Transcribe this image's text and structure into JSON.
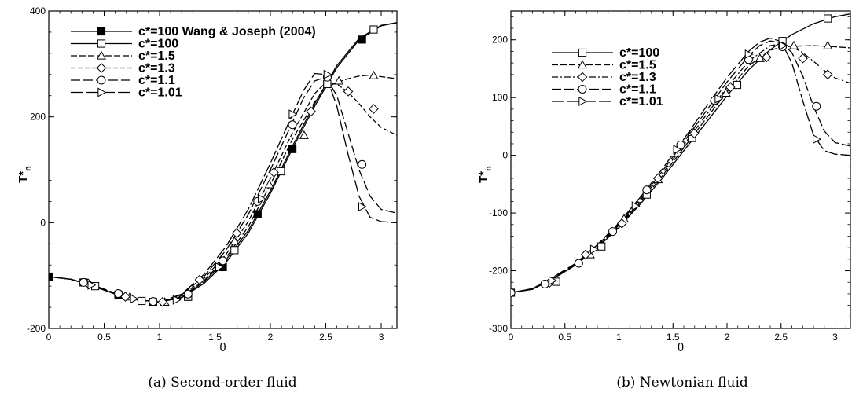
{
  "colors": {
    "ink": "#000000",
    "background": "#ffffff",
    "marker_fill": "#ffffff"
  },
  "chart_data": [
    {
      "type": "line",
      "caption": "(a) Second-order fluid",
      "xlabel": "θ",
      "ylabel": "T*",
      "ylabel_sub": "n",
      "xlim": [
        0,
        3.1416
      ],
      "ylim": [
        -200,
        400
      ],
      "xticks": [
        0,
        0.5,
        1,
        1.5,
        2,
        2.5,
        3
      ],
      "xtick_labels": [
        "0",
        "0.5",
        "1",
        "1.5",
        "2",
        "2.5",
        "3"
      ],
      "yticks": [
        -200,
        0,
        200,
        400
      ],
      "ytick_labels": [
        "-200",
        "0",
        "200",
        "400"
      ],
      "grid": false,
      "legend_position": "top-right",
      "series": [
        {
          "name": "c*=100 Wang & Joseph (2004)",
          "dash": "none",
          "marker": "filled-square",
          "x": [
            0,
            0.2,
            0.4,
            0.6,
            0.8,
            1.0,
            1.2,
            1.4,
            1.6,
            1.8,
            2.0,
            2.2,
            2.4,
            2.6,
            2.8,
            3.0,
            3.1416
          ],
          "y": [
            -102,
            -107,
            -120,
            -135,
            -146,
            -150,
            -142,
            -115,
            -75,
            -20,
            55,
            140,
            220,
            293,
            345,
            372,
            378
          ],
          "marker_x": [
            0,
            0.314,
            0.628,
            0.942,
            1.257,
            1.571,
            1.885,
            2.199,
            2.513,
            2.827
          ],
          "marker_y": [
            -102,
            -113,
            -136,
            -150,
            -140,
            -84,
            16,
            139,
            262,
            346
          ]
        },
        {
          "name": "c*=100",
          "dash": "none",
          "marker": "open-square",
          "x": [
            0,
            0.2,
            0.4,
            0.6,
            0.8,
            1.0,
            1.2,
            1.4,
            1.6,
            1.8,
            2.0,
            2.2,
            2.4,
            2.6,
            2.8,
            3.0,
            3.1416
          ],
          "y": [
            -102,
            -107,
            -120,
            -135,
            -146,
            -150,
            -141,
            -112,
            -70,
            -15,
            60,
            145,
            225,
            297,
            348,
            373,
            378
          ],
          "marker_x": [
            0.419,
            0.838,
            1.257,
            1.676,
            2.094,
            2.513,
            2.932
          ],
          "marker_y": [
            -120,
            -148,
            -140,
            -52,
            97,
            262,
            365
          ]
        },
        {
          "name": "c*=1.5",
          "dash": "8,3",
          "marker": "open-triangle",
          "x": [
            0,
            0.2,
            0.4,
            0.6,
            0.8,
            1.0,
            1.2,
            1.4,
            1.6,
            1.8,
            2.0,
            2.2,
            2.4,
            2.5,
            2.6,
            2.7,
            2.8,
            2.9,
            3.0,
            3.1416
          ],
          "y": [
            -102,
            -107,
            -119,
            -135,
            -146,
            -150,
            -140,
            -110,
            -66,
            -8,
            72,
            158,
            228,
            255,
            265,
            272,
            277,
            279,
            276,
            272
          ],
          "marker_x": [
            0.733,
            1.047,
            1.361,
            1.676,
            1.99,
            2.304,
            2.618,
            2.932
          ],
          "marker_y": [
            -140,
            -150,
            -110,
            -35,
            72,
            165,
            268,
            278
          ]
        },
        {
          "name": "c*=1.3",
          "dash": "6,3",
          "marker": "open-diamond",
          "x": [
            0,
            0.2,
            0.4,
            0.6,
            0.8,
            1.0,
            1.2,
            1.4,
            1.6,
            1.8,
            2.0,
            2.2,
            2.4,
            2.5,
            2.6,
            2.7,
            2.8,
            2.9,
            3.0,
            3.1416
          ],
          "y": [
            -102,
            -107,
            -119,
            -134,
            -146,
            -150,
            -138,
            -106,
            -60,
            2,
            83,
            170,
            244,
            265,
            262,
            247,
            225,
            200,
            180,
            165
          ],
          "marker_x": [
            0.356,
            0.691,
            1.027,
            1.361,
            1.696,
            2.031,
            2.366,
            2.702,
            2.932
          ],
          "marker_y": [
            -115,
            -140,
            -150,
            -108,
            -20,
            95,
            210,
            248,
            215
          ]
        },
        {
          "name": "c*=1.1",
          "dash": "12,4",
          "marker": "open-circle",
          "x": [
            0,
            0.2,
            0.4,
            0.6,
            0.8,
            1.0,
            1.2,
            1.4,
            1.6,
            1.8,
            2.0,
            2.2,
            2.3,
            2.4,
            2.5,
            2.6,
            2.7,
            2.8,
            2.9,
            3.0,
            3.1416
          ],
          "y": [
            -102,
            -107,
            -118,
            -134,
            -146,
            -150,
            -136,
            -102,
            -52,
            15,
            100,
            190,
            236,
            268,
            275,
            240,
            170,
            100,
            50,
            25,
            18
          ],
          "marker_x": [
            0.314,
            0.628,
            0.942,
            1.257,
            1.571,
            1.885,
            2.199,
            2.513,
            2.827
          ],
          "marker_y": [
            -113,
            -134,
            -149,
            -135,
            -72,
            40,
            185,
            275,
            110
          ]
        },
        {
          "name": "c*=1.01",
          "dash": "16,4",
          "marker": "open-triangle-right",
          "x": [
            0,
            0.2,
            0.4,
            0.6,
            0.8,
            1.0,
            1.2,
            1.4,
            1.6,
            1.8,
            2.0,
            2.2,
            2.3,
            2.4,
            2.5,
            2.6,
            2.7,
            2.8,
            2.9,
            3.0,
            3.1416
          ],
          "y": [
            -102,
            -107,
            -118,
            -133,
            -146,
            -150,
            -135,
            -98,
            -45,
            25,
            112,
            205,
            250,
            282,
            280,
            220,
            130,
            50,
            10,
            2,
            0
          ],
          "marker_x": [
            0.384,
            0.768,
            1.152,
            1.536,
            1.92,
            2.199,
            2.513,
            2.827
          ],
          "marker_y": [
            -118,
            -144,
            -146,
            -84,
            45,
            205,
            280,
            30
          ]
        }
      ]
    },
    {
      "type": "line",
      "caption": "(b) Newtonian fluid",
      "xlabel": "θ",
      "ylabel": "T*",
      "ylabel_sub": "n",
      "xlim": [
        0,
        3.1416
      ],
      "ylim": [
        -300,
        250
      ],
      "xticks": [
        0,
        0.5,
        1,
        1.5,
        2,
        2.5,
        3
      ],
      "xtick_labels": [
        "0",
        "0.5",
        "1",
        "1.5",
        "2",
        "2.5",
        "3"
      ],
      "yticks": [
        -300,
        -200,
        -100,
        0,
        100,
        200
      ],
      "ytick_labels": [
        "-300",
        "-200",
        "-100",
        "0",
        "100",
        "200"
      ],
      "grid": false,
      "legend_position": "top-left",
      "series": [
        {
          "name": "c*=100",
          "dash": "none",
          "marker": "open-square",
          "x": [
            0,
            0.2,
            0.4,
            0.6,
            0.8,
            1.0,
            1.2,
            1.4,
            1.6,
            1.8,
            2.0,
            2.2,
            2.4,
            2.6,
            2.8,
            3.0,
            3.1416
          ],
          "y": [
            -238,
            -232,
            -213,
            -190,
            -160,
            -125,
            -84,
            -40,
            8,
            55,
            103,
            148,
            183,
            209,
            228,
            240,
            245
          ],
          "marker_x": [
            0,
            0.419,
            0.838,
            1.257,
            1.676,
            2.094,
            2.513,
            2.932
          ],
          "marker_y": [
            -238,
            -219,
            -158,
            -68,
            30,
            122,
            198,
            237
          ]
        },
        {
          "name": "c*=1.5",
          "dash": "8,3",
          "marker": "open-triangle",
          "x": [
            0,
            0.2,
            0.4,
            0.6,
            0.8,
            1.0,
            1.2,
            1.4,
            1.6,
            1.8,
            2.0,
            2.2,
            2.4,
            2.5,
            2.6,
            2.8,
            3.0,
            3.1416
          ],
          "y": [
            -238,
            -232,
            -213,
            -190,
            -159,
            -123,
            -81,
            -36,
            13,
            62,
            110,
            155,
            182,
            187,
            189,
            190,
            188,
            186
          ],
          "marker_x": [
            0.733,
            1.047,
            1.361,
            1.676,
            1.99,
            2.304,
            2.618,
            2.932
          ],
          "marker_y": [
            -172,
            -110,
            -42,
            40,
            108,
            168,
            190,
            190
          ]
        },
        {
          "name": "c*=1.3",
          "dash": "8,3,2,3",
          "marker": "open-diamond",
          "x": [
            0,
            0.2,
            0.4,
            0.6,
            0.8,
            1.0,
            1.2,
            1.4,
            1.6,
            1.8,
            2.0,
            2.2,
            2.4,
            2.5,
            2.6,
            2.7,
            2.8,
            2.9,
            3.0,
            3.1416
          ],
          "y": [
            -238,
            -232,
            -212,
            -189,
            -158,
            -121,
            -78,
            -32,
            18,
            68,
            118,
            163,
            190,
            193,
            188,
            178,
            163,
            147,
            134,
            125
          ],
          "marker_x": [
            0.356,
            0.691,
            1.027,
            1.361,
            1.696,
            2.031,
            2.366,
            2.702,
            2.932
          ],
          "marker_y": [
            -221,
            -172,
            -118,
            -40,
            38,
            118,
            170,
            168,
            140
          ]
        },
        {
          "name": "c*=1.1",
          "dash": "12,4",
          "marker": "open-circle",
          "x": [
            0,
            0.2,
            0.4,
            0.6,
            0.8,
            1.0,
            1.2,
            1.4,
            1.6,
            1.8,
            2.0,
            2.2,
            2.3,
            2.4,
            2.5,
            2.6,
            2.7,
            2.8,
            2.9,
            3.0,
            3.1416
          ],
          "y": [
            -238,
            -231,
            -211,
            -188,
            -156,
            -119,
            -75,
            -28,
            23,
            75,
            127,
            172,
            190,
            198,
            195,
            178,
            138,
            85,
            42,
            22,
            16
          ],
          "marker_x": [
            0,
            0.314,
            0.628,
            0.942,
            1.257,
            1.571,
            1.885,
            2.199,
            2.513,
            2.827
          ],
          "marker_y": [
            -238,
            -223,
            -187,
            -132,
            -60,
            18,
            95,
            166,
            188,
            85
          ]
        },
        {
          "name": "c*=1.01",
          "dash": "16,4",
          "marker": "open-triangle-right",
          "x": [
            0,
            0.2,
            0.4,
            0.6,
            0.8,
            1.0,
            1.2,
            1.4,
            1.6,
            1.8,
            2.0,
            2.2,
            2.3,
            2.4,
            2.5,
            2.6,
            2.7,
            2.8,
            2.9,
            3.0,
            3.1416
          ],
          "y": [
            -238,
            -231,
            -210,
            -187,
            -155,
            -117,
            -72,
            -24,
            28,
            82,
            135,
            180,
            196,
            203,
            197,
            160,
            95,
            35,
            8,
            2,
            0
          ],
          "marker_x": [
            0.384,
            0.768,
            1.152,
            1.536,
            1.92,
            2.199,
            2.513,
            2.827
          ],
          "marker_y": [
            -217,
            -163,
            -88,
            10,
            98,
            175,
            190,
            28
          ]
        }
      ]
    }
  ]
}
